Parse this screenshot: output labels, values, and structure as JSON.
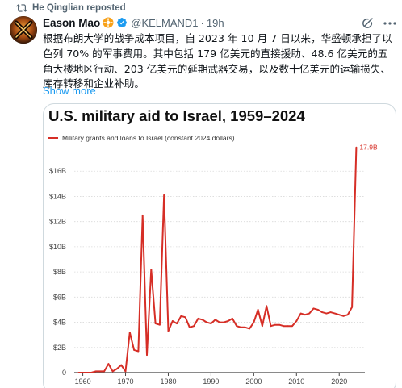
{
  "repost": {
    "text": "He Qinglian reposted",
    "icon": "repost-icon"
  },
  "tweet": {
    "author_name": "Eason Mao",
    "handle": "@KELMAND1",
    "separator": "·",
    "time": "19h",
    "text": "根据布朗大学的战争成本项目，自 2023 年 10 月 7 日以来，华盛顿承担了以色列 70% 的军事费用。其中包括 179 亿美元的直接援助、48.6 亿美元的五角大楼地区行动、203 亿美元的延期武器交易，以及数十亿美元的运输损失、库存转移和企业补助。",
    "show_more": "Show more"
  },
  "colors": {
    "accent": "#1d9bf0",
    "line": "#d62e26",
    "muted": "#536471"
  },
  "chart_data": {
    "type": "line",
    "title": "U.S. military aid to Israel, 1959–2024",
    "legend": "Military grants and loans to Israel (constant 2024 dollars)",
    "xlabel": "",
    "ylabel": "",
    "xlim": [
      1958,
      2026
    ],
    "ylim": [
      0,
      18
    ],
    "x_ticks": [
      "1960",
      "1970",
      "1980",
      "1990",
      "2000",
      "2010",
      "2020"
    ],
    "y_ticks": [
      "0",
      "$2B",
      "$4B",
      "$6B",
      "$8B",
      "$10B",
      "$12B",
      "$14B",
      "$16B"
    ],
    "end_label": "17.9B",
    "series": [
      {
        "name": "Military grants and loans to Israel (constant 2024 dollars)",
        "x": [
          1959,
          1960,
          1961,
          1962,
          1963,
          1964,
          1965,
          1966,
          1967,
          1968,
          1969,
          1970,
          1971,
          1972,
          1973,
          1974,
          1975,
          1976,
          1977,
          1978,
          1979,
          1980,
          1981,
          1982,
          1983,
          1984,
          1985,
          1986,
          1987,
          1988,
          1989,
          1990,
          1991,
          1992,
          1993,
          1994,
          1995,
          1996,
          1997,
          1998,
          1999,
          2000,
          2001,
          2002,
          2003,
          2004,
          2005,
          2006,
          2007,
          2008,
          2009,
          2010,
          2011,
          2012,
          2013,
          2014,
          2015,
          2016,
          2017,
          2018,
          2019,
          2020,
          2021,
          2022,
          2023,
          2024
        ],
        "y": [
          0,
          0,
          0,
          0,
          0.1,
          0.1,
          0.1,
          0.7,
          0.1,
          0.3,
          0.6,
          0.1,
          3.2,
          1.8,
          1.7,
          12.5,
          1.4,
          8.2,
          3.9,
          3.8,
          14.1,
          3.3,
          4.1,
          3.9,
          4.5,
          4.4,
          3.6,
          3.7,
          4.3,
          4.2,
          4.0,
          3.9,
          4.2,
          4.0,
          4.0,
          4.1,
          4.3,
          3.7,
          3.6,
          3.6,
          3.5,
          4.0,
          5.0,
          3.7,
          5.3,
          3.7,
          3.8,
          3.8,
          3.7,
          3.7,
          3.7,
          4.1,
          4.7,
          4.6,
          4.7,
          5.1,
          5.0,
          4.8,
          4.7,
          4.8,
          4.7,
          4.6,
          4.5,
          4.6,
          5.2,
          17.9
        ]
      }
    ]
  }
}
